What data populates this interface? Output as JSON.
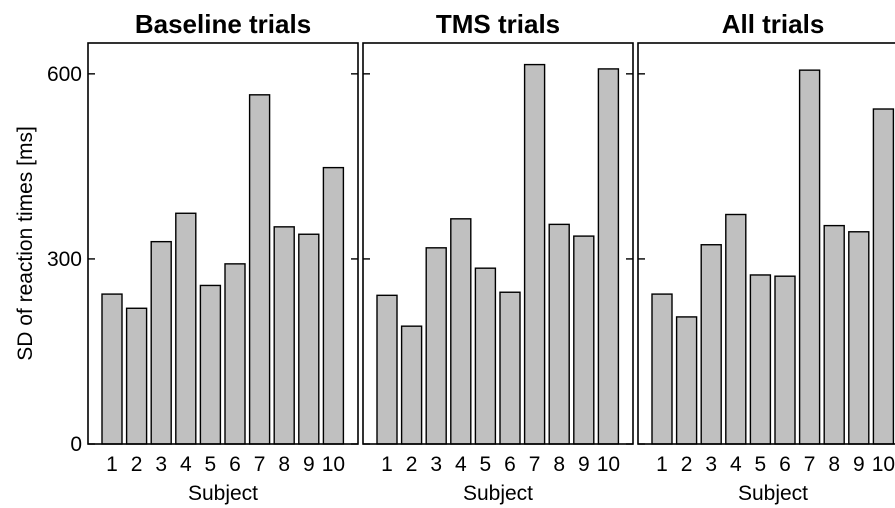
{
  "chart_data": [
    {
      "type": "bar",
      "title": "Baseline trials",
      "xlabel": "Subject",
      "ylabel": "SD of reaction times [ms]",
      "categories": [
        "1",
        "2",
        "3",
        "4",
        "5",
        "6",
        "7",
        "8",
        "9",
        "10"
      ],
      "values": [
        243,
        220,
        328,
        374,
        257,
        292,
        566,
        352,
        340,
        448
      ],
      "ylim": [
        0,
        650
      ],
      "yticks": [
        "0",
        "300",
        "600"
      ],
      "grid": false
    },
    {
      "type": "bar",
      "title": "TMS trials",
      "xlabel": "Subject",
      "ylabel": "",
      "categories": [
        "1",
        "2",
        "3",
        "4",
        "5",
        "6",
        "7",
        "8",
        "9",
        "10"
      ],
      "values": [
        241,
        191,
        318,
        365,
        285,
        246,
        615,
        356,
        337,
        608
      ],
      "ylim": [
        0,
        650
      ],
      "yticks": [
        "0",
        "300",
        "600"
      ],
      "grid": false
    },
    {
      "type": "bar",
      "title": "All trials",
      "xlabel": "Subject",
      "ylabel": "",
      "categories": [
        "1",
        "2",
        "3",
        "4",
        "5",
        "6",
        "7",
        "8",
        "9",
        "10"
      ],
      "values": [
        243,
        206,
        323,
        372,
        274,
        272,
        606,
        354,
        344,
        543
      ],
      "ylim": [
        0,
        650
      ],
      "yticks": [
        "0",
        "300",
        "600"
      ],
      "grid": false
    }
  ],
  "colors": {
    "bar_fill": "#c0c0c0",
    "bar_stroke": "#000000",
    "axis": "#000000"
  }
}
